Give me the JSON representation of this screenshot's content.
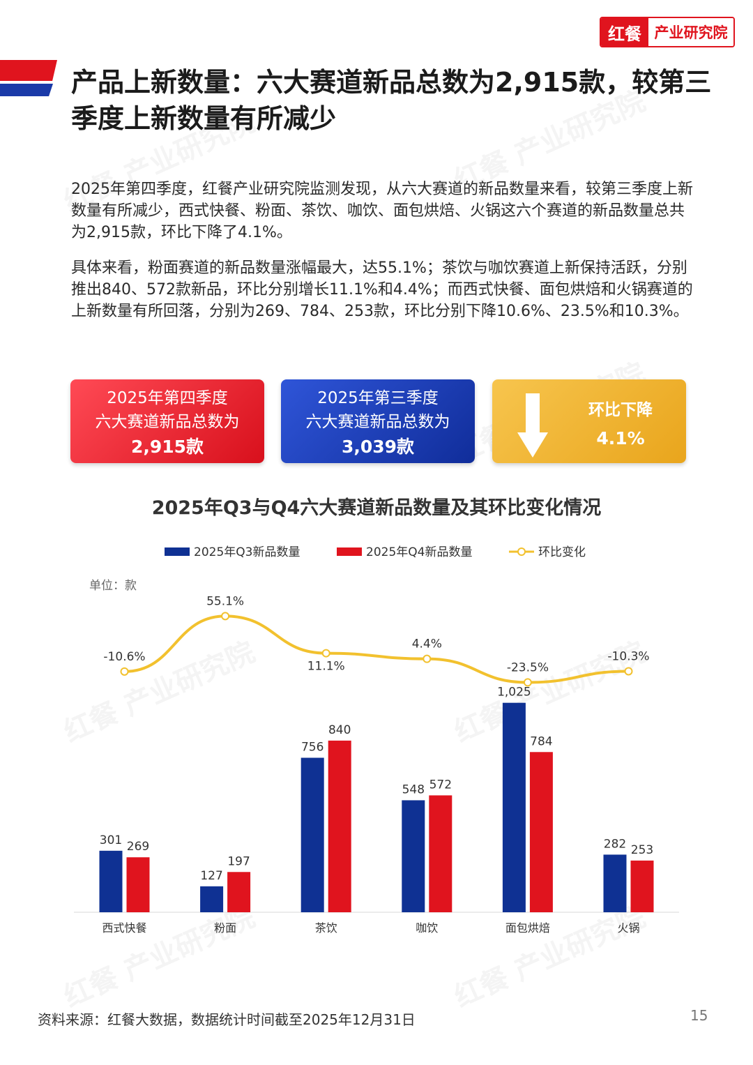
{
  "logo": {
    "brand": "红餐",
    "name": "产业研究院"
  },
  "title": "产品上新数量：六大赛道新品总数为2,915款，较第三季度上新数量有所减少",
  "paragraphs": [
    "2025年第四季度，红餐产业研究院监测发现，从六大赛道的新品数量来看，较第三季度上新数量有所减少，西式快餐、粉面、茶饮、咖饮、面包烘焙、火锅这六个赛道的新品数量总共为2,915款，环比下降了4.1%。",
    "具体来看，粉面赛道的新品数量涨幅最大，达55.1%；茶饮与咖饮赛道上新保持活跃，分别推出840、572款新品，环比分别增长11.1%和4.4%；而西式快餐、面包烘焙和火锅赛道的上新数量有所回落，分别为269、784、253款，环比分别下降10.6%、23.5%和10.3%。"
  ],
  "kpis": {
    "q4": {
      "line1": "2025年第四季度",
      "line2": "六大赛道新品总数为",
      "value": "2,915款"
    },
    "q3": {
      "line1": "2025年第三季度",
      "line2": "六大赛道新品总数为",
      "value": "3,039款"
    },
    "change": {
      "label": "环比下降",
      "value": "4.1%"
    }
  },
  "colors": {
    "red": "#e0141e",
    "blue": "#0f3193",
    "gold": "#f2c12e"
  },
  "chart_data": {
    "type": "bar",
    "title": "2025年Q3与Q4六大赛道新品数量及其环比变化情况",
    "unit_label": "单位：款",
    "categories": [
      "西式快餐",
      "粉面",
      "茶饮",
      "咖饮",
      "面包烘焙",
      "火锅"
    ],
    "series": [
      {
        "name": "2025年Q3新品数量",
        "color": "#0f3193",
        "values": [
          301,
          127,
          756,
          548,
          1025,
          282
        ],
        "labels": [
          "301",
          "127",
          "756",
          "548",
          "1,025",
          "282"
        ]
      },
      {
        "name": "2025年Q4新品数量",
        "color": "#e0141e",
        "values": [
          269,
          197,
          840,
          572,
          784,
          253
        ],
        "labels": [
          "269",
          "197",
          "840",
          "572",
          "784",
          "253"
        ]
      }
    ],
    "line_series": {
      "name": "环比变化",
      "color": "#f2c12e",
      "values": [
        -10.6,
        55.1,
        11.1,
        4.4,
        -23.5,
        -10.3
      ],
      "labels": [
        "-10.6%",
        "55.1%",
        "11.1%",
        "4.4%",
        "-23.5%",
        "-10.3%"
      ]
    },
    "legend_position": "top"
  },
  "watermark": "红餐 产业研究院",
  "footer": {
    "source": "资料来源：红餐大数据，数据统计时间截至2025年12月31日",
    "page": "15"
  }
}
